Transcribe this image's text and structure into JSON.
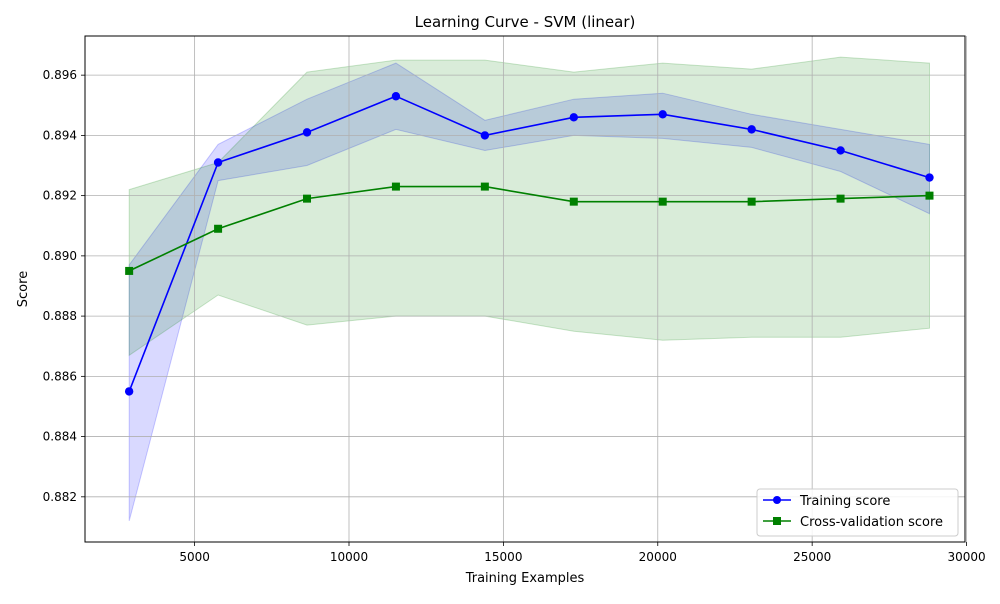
{
  "chart_data": {
    "type": "line",
    "title": "Learning Curve - SVM (linear)",
    "xlabel": "Training Examples",
    "ylabel": "Score",
    "xlim": [
      1450,
      29950
    ],
    "ylim": [
      0.8805,
      0.8973
    ],
    "x_ticks": [
      5000,
      10000,
      15000,
      20000,
      25000,
      30000
    ],
    "y_ticks": [
      0.882,
      0.884,
      0.886,
      0.888,
      0.89,
      0.892,
      0.894,
      0.896
    ],
    "grid": true,
    "legend_position": "lower-right",
    "x": [
      2880,
      5760,
      8640,
      11520,
      14400,
      17280,
      20160,
      23040,
      25920,
      28800
    ],
    "series": [
      {
        "name": "Training score",
        "color": "#0000ff",
        "marker": "circle",
        "values": [
          0.8855,
          0.8931,
          0.8941,
          0.8953,
          0.894,
          0.8946,
          0.8947,
          0.8942,
          0.8935,
          0.8926
        ],
        "band_lower": [
          0.8812,
          0.8925,
          0.893,
          0.8942,
          0.8935,
          0.894,
          0.8939,
          0.8936,
          0.8928,
          0.8914
        ],
        "band_upper": [
          0.8897,
          0.8937,
          0.8952,
          0.8964,
          0.8945,
          0.8952,
          0.8954,
          0.8947,
          0.8942,
          0.8937
        ],
        "band_color": "#0000ff"
      },
      {
        "name": "Cross-validation score",
        "color": "#008000",
        "marker": "square",
        "values": [
          0.8895,
          0.8909,
          0.8919,
          0.8923,
          0.8923,
          0.8918,
          0.8918,
          0.8918,
          0.8919,
          0.892
        ],
        "band_lower": [
          0.8867,
          0.8887,
          0.8877,
          0.888,
          0.888,
          0.8875,
          0.8872,
          0.8873,
          0.8873,
          0.8876
        ],
        "band_upper": [
          0.8922,
          0.8931,
          0.8961,
          0.8965,
          0.8965,
          0.8961,
          0.8964,
          0.8962,
          0.8966,
          0.8964
        ],
        "band_color": "#008000"
      }
    ]
  }
}
